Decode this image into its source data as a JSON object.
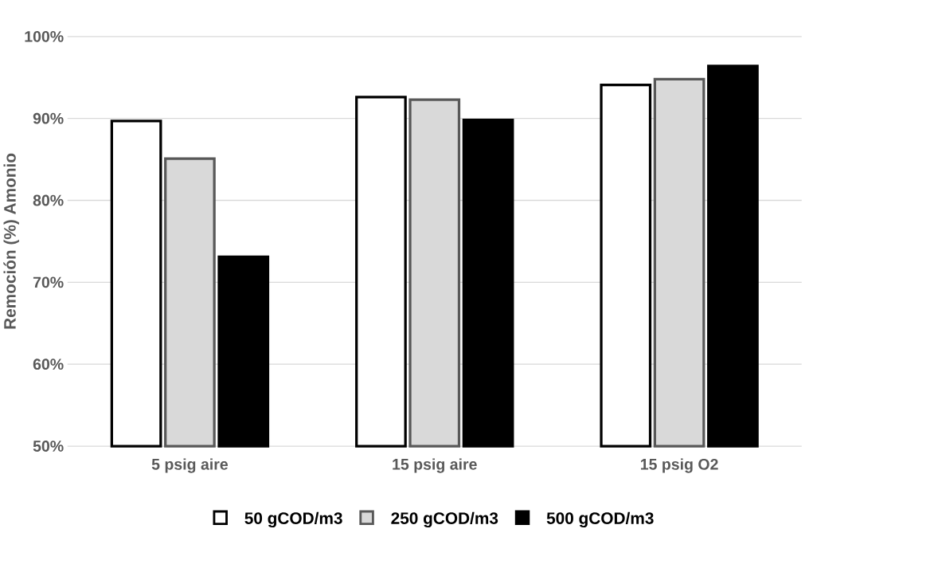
{
  "chart_data": {
    "type": "bar",
    "ylabel": "Remoción (%) Amonio",
    "categories": [
      "5 psig aire",
      "15 psig aire",
      "15 psig O2"
    ],
    "series": [
      {
        "name": "50 gCOD/m3",
        "color": "#ffffff",
        "values": [
          89.7,
          92.6,
          94.1
        ]
      },
      {
        "name": "250 gCOD/m3",
        "color": "#d9d9d9",
        "values": [
          85.1,
          92.3,
          94.8
        ]
      },
      {
        "name": "500 gCOD/m3",
        "color": "#000000",
        "values": [
          73.1,
          89.8,
          96.4
        ]
      }
    ],
    "ylim": [
      50,
      100
    ],
    "yticks": [
      {
        "value": 50,
        "label": "50%"
      },
      {
        "value": 60,
        "label": "60%"
      },
      {
        "value": 70,
        "label": "70%"
      },
      {
        "value": 80,
        "label": "80%"
      },
      {
        "value": 90,
        "label": "90%"
      },
      {
        "value": 100,
        "label": "100%"
      }
    ],
    "grid": "y",
    "legend": "bottom"
  }
}
